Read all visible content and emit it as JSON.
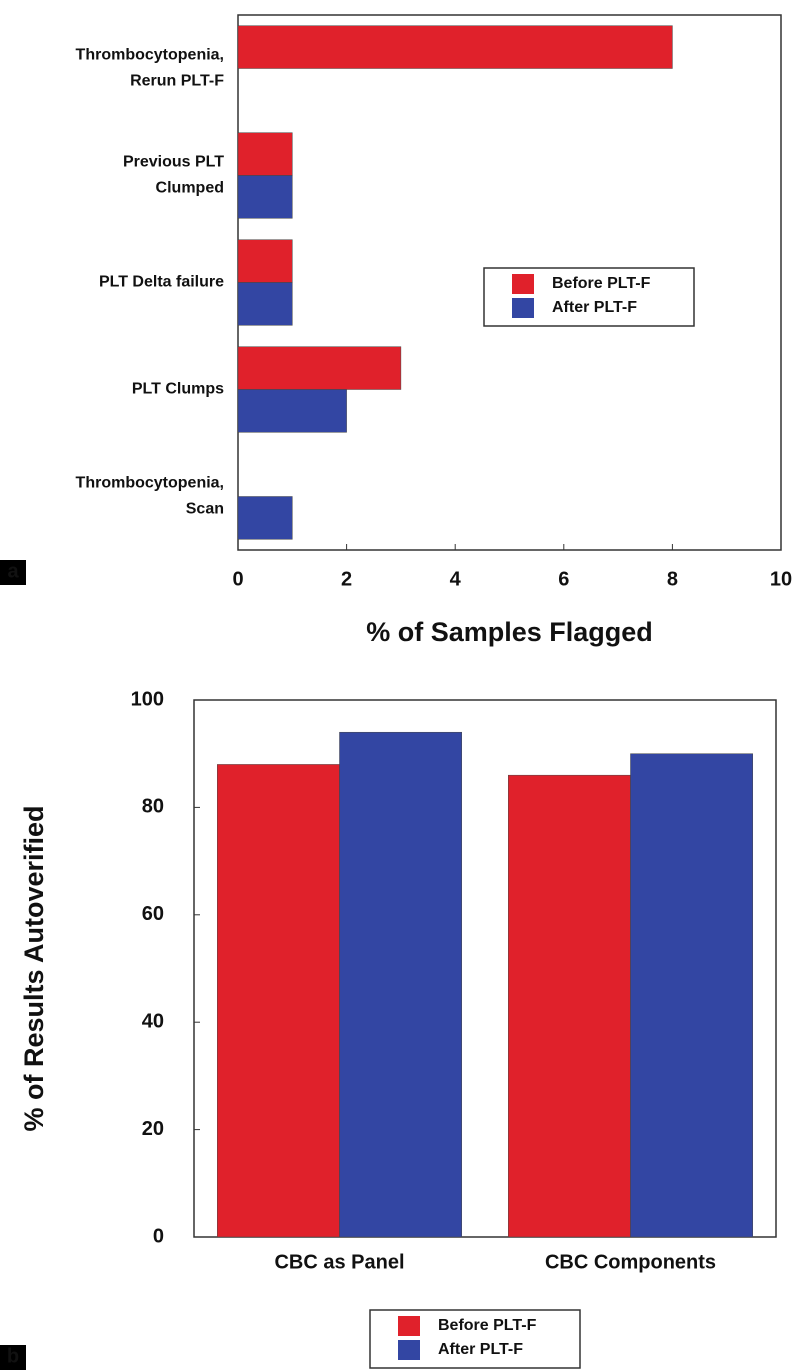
{
  "chart_data": [
    {
      "type": "bar",
      "orientation": "horizontal",
      "panel_label": "a",
      "categories": [
        [
          "Thrombocytopenia,",
          "Rerun PLT-F"
        ],
        [
          "Previous PLT",
          "Clumped"
        ],
        [
          "PLT Delta failure"
        ],
        [
          "PLT Clumps"
        ],
        [
          "Thrombocytopenia,",
          "Scan"
        ]
      ],
      "series": [
        {
          "name": "Before PLT-F",
          "color": "#e0212b",
          "values": [
            8,
            1,
            1,
            3,
            0
          ]
        },
        {
          "name": "After PLT-F",
          "color": "#3346a3",
          "values": [
            0,
            1,
            1,
            2,
            1
          ]
        }
      ],
      "xlim": [
        0,
        10
      ],
      "xticks": [
        0,
        2,
        4,
        6,
        8,
        10
      ],
      "x_label": "% of Samples Flagged",
      "legend": "center-right"
    },
    {
      "type": "bar",
      "orientation": "vertical",
      "panel_label": "b",
      "categories": [
        "CBC as Panel",
        "CBC Components"
      ],
      "series": [
        {
          "name": "Before PLT-F",
          "color": "#e0212b",
          "values": [
            88,
            86
          ]
        },
        {
          "name": "After PLT-F",
          "color": "#3346a3",
          "values": [
            94,
            90
          ]
        }
      ],
      "ylim": [
        0,
        100
      ],
      "yticks": [
        0,
        20,
        40,
        60,
        80,
        100
      ],
      "y_label": "% of Results Autoverified",
      "legend": "below"
    }
  ]
}
